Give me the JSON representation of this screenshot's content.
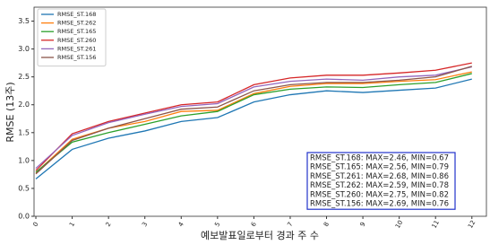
{
  "chart_data": {
    "type": "line",
    "xlabel": "예보발표일로부터 경과 주 수",
    "ylabel": "RMSE (13주)",
    "x": [
      0,
      1,
      2,
      3,
      4,
      5,
      6,
      7,
      8,
      9,
      10,
      11,
      12
    ],
    "xlim": [
      -0.05,
      12.4
    ],
    "xticks": [
      0,
      1,
      2,
      3,
      4,
      5,
      6,
      7,
      8,
      9,
      10,
      11,
      12
    ],
    "ylim": [
      0,
      3.75
    ],
    "yticks": [
      {
        "value": 0,
        "label": "0.0"
      },
      0.5,
      {
        "value": 1,
        "label": "1.0"
      },
      1.5,
      {
        "value": 2,
        "label": "2.0"
      },
      2.5,
      {
        "value": 3,
        "label": "3.0"
      },
      3.5
    ],
    "legend": "upper left",
    "series": [
      {
        "name": "RMSE_ST.168",
        "color": "#1f77b4",
        "values": [
          0.67,
          1.2,
          1.4,
          1.53,
          1.7,
          1.77,
          2.05,
          2.18,
          2.25,
          2.22,
          2.26,
          2.3,
          2.46
        ]
      },
      {
        "name": "RMSE_ST.262",
        "color": "#ff7f0e",
        "values": [
          0.78,
          1.38,
          1.58,
          1.7,
          1.88,
          1.9,
          2.2,
          2.33,
          2.38,
          2.38,
          2.42,
          2.45,
          2.59
        ]
      },
      {
        "name": "RMSE_ST.165",
        "color": "#2ca02c",
        "values": [
          0.79,
          1.33,
          1.5,
          1.65,
          1.8,
          1.88,
          2.18,
          2.28,
          2.32,
          2.31,
          2.36,
          2.4,
          2.56
        ]
      },
      {
        "name": "RMSE_ST.260",
        "color": "#d62728",
        "values": [
          0.82,
          1.48,
          1.7,
          1.85,
          2.0,
          2.05,
          2.36,
          2.48,
          2.53,
          2.53,
          2.57,
          2.62,
          2.75
        ]
      },
      {
        "name": "RMSE_ST.261",
        "color": "#9467bd",
        "values": [
          0.86,
          1.45,
          1.68,
          1.83,
          1.97,
          2.02,
          2.32,
          2.42,
          2.46,
          2.44,
          2.5,
          2.53,
          2.68
        ]
      },
      {
        "name": "RMSE_ST.156",
        "color": "#8c564b",
        "values": [
          0.76,
          1.36,
          1.58,
          1.75,
          1.92,
          1.96,
          2.25,
          2.36,
          2.4,
          2.4,
          2.44,
          2.5,
          2.69
        ]
      }
    ],
    "annotations": [
      "RMSE_ST.168: MAX=2.46, MIN=0.67",
      "RMSE_ST.165: MAX=2.56, MIN=0.79",
      "RMSE_ST.261: MAX=2.68, MIN=0.86",
      "RMSE_ST.262: MAX=2.59, MIN=0.78",
      "RMSE_ST.260: MAX=2.75, MIN=0.82",
      "RMSE_ST.156: MAX=2.69, MIN=0.76"
    ]
  }
}
